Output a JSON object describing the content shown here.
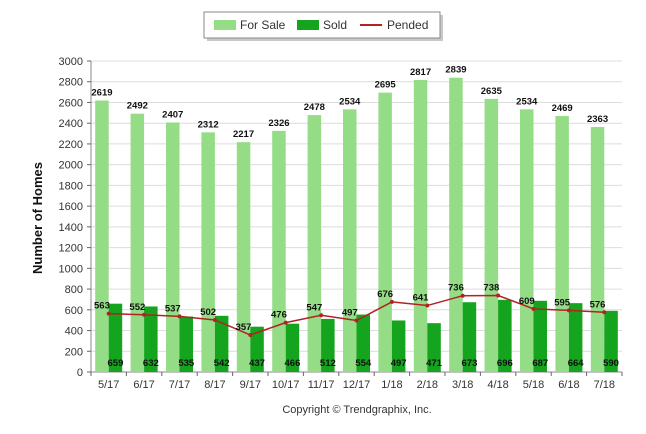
{
  "chart_data": {
    "type": "bar",
    "categories": [
      "5/17",
      "6/17",
      "7/17",
      "8/17",
      "9/17",
      "10/17",
      "11/17",
      "12/17",
      "1/18",
      "2/18",
      "3/18",
      "4/18",
      "5/18",
      "6/18",
      "7/18"
    ],
    "series": [
      {
        "name": "For Sale",
        "type": "bar",
        "color": "#95dc87",
        "values": [
          2619,
          2492,
          2407,
          2312,
          2217,
          2326,
          2478,
          2534,
          2695,
          2817,
          2839,
          2635,
          2534,
          2469,
          2363
        ]
      },
      {
        "name": "Sold",
        "type": "bar",
        "color": "#14a41e",
        "values": [
          659,
          632,
          535,
          542,
          437,
          466,
          512,
          554,
          497,
          471,
          673,
          696,
          687,
          664,
          590
        ]
      },
      {
        "name": "Pended",
        "type": "line",
        "color": "#b22222",
        "values": [
          563,
          552,
          537,
          502,
          357,
          476,
          547,
          497,
          676,
          641,
          736,
          738,
          609,
          595,
          576
        ]
      }
    ],
    "ylabel": "Number of Homes",
    "xlabel": "",
    "ylim": [
      0,
      3000
    ],
    "yticks": [
      0,
      200,
      400,
      600,
      800,
      1000,
      1200,
      1400,
      1600,
      1800,
      2000,
      2200,
      2400,
      2600,
      2800,
      3000
    ],
    "grid": true,
    "legend_position": "top-center"
  },
  "footer": {
    "copyright": "Copyright © Trendgraphix, Inc."
  }
}
